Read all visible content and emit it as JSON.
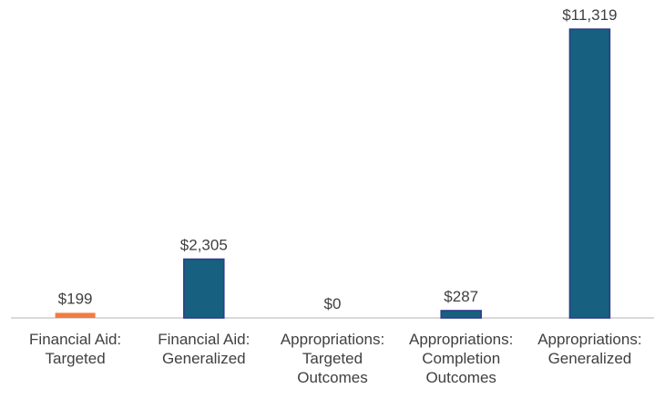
{
  "chart_data": {
    "type": "bar",
    "categories": [
      [
        "Financial Aid:",
        "Targeted"
      ],
      [
        "Financial Aid:",
        "Generalized"
      ],
      [
        "Appropriations:",
        "Targeted",
        "Outcomes"
      ],
      [
        "Appropriations:",
        "Completion",
        "Outcomes"
      ],
      [
        "Appropriations:",
        "Generalized"
      ]
    ],
    "values": [
      199,
      2305,
      0,
      287,
      11319
    ],
    "data_labels": [
      "$199",
      "$2,305",
      "$0",
      "$287",
      "$11,319"
    ],
    "colors": [
      "#f47b3e",
      "#17607f",
      "#17607f",
      "#17607f",
      "#17607f"
    ],
    "bar_border_color": "#2e3a8c",
    "title": "",
    "xlabel": "",
    "ylabel": "",
    "ylim": [
      0,
      11319
    ],
    "grid": false,
    "legend": "none"
  }
}
